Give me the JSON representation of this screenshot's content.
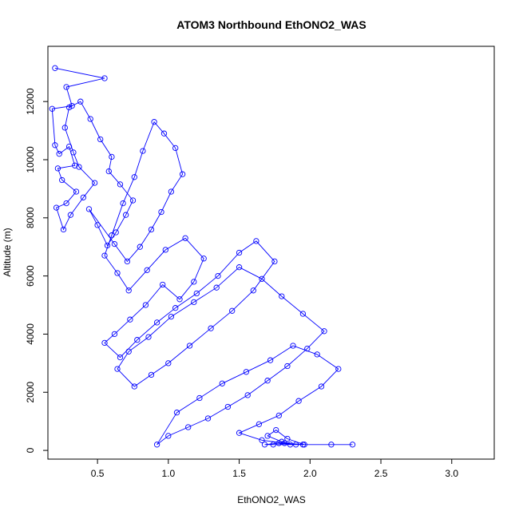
{
  "chart_data": {
    "type": "scatter",
    "title": "ATOM3 Northbound EthONO2_WAS",
    "xlabel": "EthONO2_WAS",
    "ylabel": "Altitude (m)",
    "xlim": [
      0.15,
      3.3
    ],
    "ylim": [
      -300,
      13900
    ],
    "x_ticks": [
      0.5,
      1.0,
      1.5,
      2.0,
      2.5,
      3.0
    ],
    "x_tick_labels": [
      "0.5",
      "1.0",
      "1.5",
      "2.0",
      "2.5",
      "3.0"
    ],
    "y_ticks": [
      0,
      2000,
      4000,
      6000,
      8000,
      10000,
      12000
    ],
    "y_tick_labels": [
      "0",
      "2000",
      "4000",
      "6000",
      "8000",
      "10000",
      "12000"
    ],
    "grid": false,
    "connected": true,
    "marker": "open-circle",
    "color": "#0000ff",
    "series": [
      {
        "x": [
          0.2,
          0.55,
          0.28,
          0.32,
          0.18,
          0.2,
          0.23,
          0.3,
          0.34,
          0.22,
          0.25,
          0.35,
          0.28,
          0.21,
          0.26,
          0.31,
          0.4,
          0.48,
          0.37,
          0.33,
          0.27,
          0.3,
          0.38,
          0.45,
          0.52,
          0.6,
          0.58,
          0.66,
          0.75,
          0.7,
          0.63,
          0.57,
          0.5,
          0.44,
          0.62,
          0.71,
          0.8,
          0.88,
          0.95,
          1.02,
          1.1,
          1.05,
          0.97,
          0.9,
          0.82,
          0.76,
          0.68,
          0.6,
          0.55,
          0.64,
          0.72,
          0.85,
          0.98,
          1.12,
          1.25,
          1.18,
          1.08,
          0.96,
          0.84,
          0.73,
          0.62,
          0.55,
          0.66,
          0.78,
          0.92,
          1.05,
          1.2,
          1.35,
          1.5,
          1.62,
          1.75,
          1.6,
          1.45,
          1.3,
          1.15,
          1.0,
          0.88,
          0.76,
          0.64,
          0.72,
          0.86,
          1.02,
          1.18,
          1.34,
          1.5,
          1.66,
          1.8,
          1.95,
          2.1,
          1.98,
          1.84,
          1.7,
          1.56,
          1.42,
          1.28,
          1.14,
          1.0,
          0.92,
          1.06,
          1.22,
          1.38,
          1.55,
          1.72,
          1.88,
          2.05,
          2.2,
          2.08,
          1.92,
          1.78,
          1.64,
          1.5,
          1.66,
          1.82,
          1.96,
          1.84,
          1.76,
          1.7,
          1.8,
          1.9,
          1.78,
          1.68,
          1.74,
          1.86,
          1.95,
          2.15,
          2.3
        ],
        "y": [
          13150,
          12800,
          12500,
          11850,
          11750,
          10500,
          10200,
          10450,
          9800,
          9700,
          9300,
          8900,
          8500,
          8350,
          7600,
          8100,
          8700,
          9200,
          9750,
          10250,
          11100,
          11800,
          12000,
          11400,
          10700,
          10100,
          9600,
          9150,
          8600,
          8100,
          7500,
          7050,
          7750,
          8300,
          7100,
          6500,
          7000,
          7600,
          8200,
          8900,
          9500,
          10400,
          10900,
          11300,
          10300,
          9400,
          8500,
          7400,
          6700,
          6100,
          5500,
          6200,
          6900,
          7300,
          6600,
          5800,
          5200,
          5700,
          5000,
          4500,
          4000,
          3700,
          3200,
          3800,
          4400,
          4900,
          5400,
          6000,
          6800,
          7200,
          6500,
          5500,
          4800,
          4200,
          3600,
          3000,
          2600,
          2200,
          2800,
          3400,
          3900,
          4600,
          5100,
          5600,
          6300,
          5900,
          5300,
          4700,
          4100,
          3500,
          2900,
          2400,
          1900,
          1500,
          1100,
          800,
          500,
          200,
          1300,
          1800,
          2300,
          2700,
          3100,
          3600,
          3300,
          2800,
          2200,
          1700,
          1200,
          900,
          600,
          350,
          250,
          200,
          400,
          700,
          500,
          300,
          200,
          250,
          200,
          200,
          200,
          200,
          200,
          200
        ]
      }
    ]
  }
}
